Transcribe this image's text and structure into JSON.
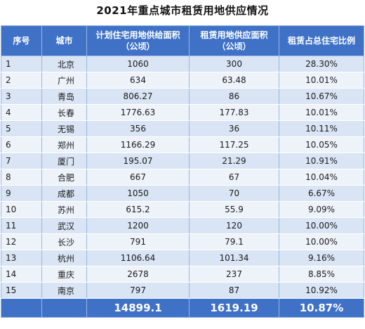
{
  "title": "2021年重点城市租赁用地供应情况",
  "table": {
    "headers": {
      "index": "序号",
      "city": "城市",
      "planned_line1": "计划住宅用地供给面积",
      "planned_line2": "（公顷）",
      "rental_line1": "租赁用地供应面积",
      "rental_line2": "（公顷）",
      "ratio": "租赁占总住宅比例"
    },
    "rows": [
      {
        "index": "1",
        "city": "北京",
        "planned": "1060",
        "rental": "300",
        "ratio": "28.30%"
      },
      {
        "index": "2",
        "city": "广州",
        "planned": "634",
        "rental": "63.48",
        "ratio": "10.01%"
      },
      {
        "index": "3",
        "city": "青岛",
        "planned": "806.27",
        "rental": "86",
        "ratio": "10.67%"
      },
      {
        "index": "4",
        "city": "长春",
        "planned": "1776.63",
        "rental": "177.83",
        "ratio": "10.01%"
      },
      {
        "index": "5",
        "city": "无锡",
        "planned": "356",
        "rental": "36",
        "ratio": "10.11%"
      },
      {
        "index": "6",
        "city": "郑州",
        "planned": "1166.29",
        "rental": "117.25",
        "ratio": "10.05%"
      },
      {
        "index": "7",
        "city": "厦门",
        "planned": "195.07",
        "rental": "21.29",
        "ratio": "10.91%"
      },
      {
        "index": "8",
        "city": "合肥",
        "planned": "667",
        "rental": "67",
        "ratio": "10.04%"
      },
      {
        "index": "9",
        "city": "成都",
        "planned": "1050",
        "rental": "70",
        "ratio": "6.67%"
      },
      {
        "index": "10",
        "city": "苏州",
        "planned": "615.2",
        "rental": "55.9",
        "ratio": "9.09%"
      },
      {
        "index": "11",
        "city": "武汉",
        "planned": "1200",
        "rental": "120",
        "ratio": "10.00%"
      },
      {
        "index": "12",
        "city": "长沙",
        "planned": "791",
        "rental": "79.1",
        "ratio": "10.00%"
      },
      {
        "index": "13",
        "city": "杭州",
        "planned": "1106.64",
        "rental": "101.34",
        "ratio": "9.16%"
      },
      {
        "index": "14",
        "city": "重庆",
        "planned": "2678",
        "rental": "237",
        "ratio": "8.85%"
      },
      {
        "index": "15",
        "city": "南京",
        "planned": "797",
        "rental": "87",
        "ratio": "10.92%"
      }
    ],
    "totals": {
      "planned": "14899.1",
      "rental": "1619.19",
      "ratio": "10.87%"
    }
  },
  "colors": {
    "header_bg": "#3f72c6",
    "row_odd": "#d9e4f4",
    "row_even": "#eef3fa",
    "grid_line": "#9ab5e2"
  }
}
